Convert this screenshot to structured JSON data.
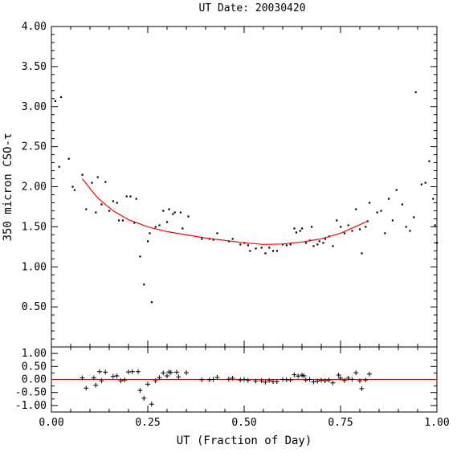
{
  "chart_data": [
    {
      "type": "scatter",
      "title": "UT Date: 20030420",
      "xlabel": "",
      "ylabel": "350 micron CSO-τ",
      "xlim": [
        0,
        1
      ],
      "ylim": [
        0,
        4
      ],
      "ytick_labels": [
        "0.50",
        "1.00",
        "1.50",
        "2.00",
        "2.50",
        "3.00",
        "3.50",
        "4.00"
      ],
      "series": [
        {
          "marker": "dot",
          "color": "#000000",
          "points": [
            [
              0.01,
              3.07
            ],
            [
              0.025,
              3.12
            ],
            [
              0.02,
              2.25
            ],
            [
              0.045,
              2.35
            ],
            [
              0.055,
              2.0
            ],
            [
              0.06,
              1.96
            ],
            [
              0.08,
              2.15
            ],
            [
              0.09,
              1.72
            ],
            [
              0.105,
              2.05
            ],
            [
              0.115,
              1.68
            ],
            [
              0.12,
              2.12
            ],
            [
              0.13,
              1.78
            ],
            [
              0.14,
              2.06
            ],
            [
              0.15,
              1.7
            ],
            [
              0.16,
              1.82
            ],
            [
              0.17,
              1.8
            ],
            [
              0.175,
              1.58
            ],
            [
              0.185,
              1.58
            ],
            [
              0.195,
              1.88
            ],
            [
              0.205,
              1.88
            ],
            [
              0.215,
              1.55
            ],
            [
              0.22,
              1.85
            ],
            [
              0.23,
              1.13
            ],
            [
              0.24,
              0.78
            ],
            [
              0.25,
              1.32
            ],
            [
              0.255,
              1.42
            ],
            [
              0.26,
              0.56
            ],
            [
              0.27,
              1.5
            ],
            [
              0.28,
              1.52
            ],
            [
              0.29,
              1.7
            ],
            [
              0.3,
              1.56
            ],
            [
              0.305,
              1.72
            ],
            [
              0.315,
              1.66
            ],
            [
              0.32,
              1.68
            ],
            [
              0.335,
              1.68
            ],
            [
              0.34,
              1.48
            ],
            [
              0.355,
              1.63
            ],
            [
              0.39,
              1.35
            ],
            [
              0.41,
              1.35
            ],
            [
              0.42,
              1.34
            ],
            [
              0.43,
              1.42
            ],
            [
              0.46,
              1.32
            ],
            [
              0.47,
              1.35
            ],
            [
              0.49,
              1.28
            ],
            [
              0.5,
              1.3
            ],
            [
              0.51,
              1.27
            ],
            [
              0.515,
              1.2
            ],
            [
              0.53,
              1.23
            ],
            [
              0.545,
              1.24
            ],
            [
              0.555,
              1.17
            ],
            [
              0.565,
              1.24
            ],
            [
              0.575,
              1.2
            ],
            [
              0.585,
              1.2
            ],
            [
              0.6,
              1.28
            ],
            [
              0.61,
              1.27
            ],
            [
              0.62,
              1.28
            ],
            [
              0.63,
              1.48
            ],
            [
              0.635,
              1.43
            ],
            [
              0.645,
              1.45
            ],
            [
              0.65,
              1.48
            ],
            [
              0.66,
              1.3
            ],
            [
              0.67,
              1.33
            ],
            [
              0.675,
              1.5
            ],
            [
              0.68,
              1.26
            ],
            [
              0.69,
              1.28
            ],
            [
              0.695,
              1.32
            ],
            [
              0.705,
              1.3
            ],
            [
              0.71,
              1.35
            ],
            [
              0.72,
              1.38
            ],
            [
              0.73,
              1.26
            ],
            [
              0.74,
              1.58
            ],
            [
              0.75,
              1.5
            ],
            [
              0.76,
              1.42
            ],
            [
              0.77,
              1.52
            ],
            [
              0.78,
              1.45
            ],
            [
              0.79,
              1.72
            ],
            [
              0.8,
              1.47
            ],
            [
              0.805,
              1.17
            ],
            [
              0.815,
              1.5
            ],
            [
              0.82,
              1.57
            ],
            [
              0.825,
              1.8
            ],
            [
              0.845,
              1.68
            ],
            [
              0.855,
              1.7
            ],
            [
              0.865,
              1.42
            ],
            [
              0.875,
              1.85
            ],
            [
              0.885,
              1.58
            ],
            [
              0.895,
              1.96
            ],
            [
              0.91,
              1.78
            ],
            [
              0.92,
              1.5
            ],
            [
              0.93,
              1.45
            ],
            [
              0.94,
              1.62
            ],
            [
              0.945,
              3.18
            ],
            [
              0.96,
              2.03
            ],
            [
              0.97,
              2.05
            ],
            [
              0.98,
              2.32
            ],
            [
              0.99,
              1.85
            ],
            [
              0.995,
              1.52
            ],
            [
              1.0,
              1.3
            ]
          ]
        },
        {
          "type": "line",
          "color": "#ff0000",
          "x": [
            0.08,
            0.12,
            0.16,
            0.2,
            0.25,
            0.3,
            0.35,
            0.4,
            0.45,
            0.5,
            0.55,
            0.6,
            0.65,
            0.7,
            0.75,
            0.82
          ],
          "y": [
            2.1,
            1.86,
            1.7,
            1.59,
            1.5,
            1.44,
            1.4,
            1.36,
            1.33,
            1.3,
            1.28,
            1.285,
            1.31,
            1.35,
            1.42,
            1.57
          ]
        }
      ]
    },
    {
      "type": "scatter",
      "xlabel": "UT (Fraction of Day)",
      "xlim": [
        0,
        1
      ],
      "ylim": [
        -1.25,
        1.25
      ],
      "xtick_labels": [
        "0.00",
        "0.25",
        "0.50",
        "0.75",
        "1.00"
      ],
      "ytick_labels": [
        "-1.00",
        "-0.50",
        "0.00",
        "0.50",
        "1.00"
      ],
      "zero_line": true,
      "series": [
        {
          "marker": "plus",
          "color": "#000000",
          "points": [
            [
              0.08,
              0.06
            ],
            [
              0.09,
              -0.33
            ],
            [
              0.11,
              0.06
            ],
            [
              0.115,
              -0.22
            ],
            [
              0.125,
              0.3
            ],
            [
              0.13,
              -0.05
            ],
            [
              0.14,
              0.28
            ],
            [
              0.16,
              0.12
            ],
            [
              0.17,
              0.14
            ],
            [
              0.18,
              -0.05
            ],
            [
              0.19,
              -0.02
            ],
            [
              0.2,
              0.29
            ],
            [
              0.21,
              0.3
            ],
            [
              0.225,
              0.3
            ],
            [
              0.23,
              -0.42
            ],
            [
              0.24,
              -0.72
            ],
            [
              0.25,
              -0.18
            ],
            [
              0.26,
              -0.95
            ],
            [
              0.27,
              -0.05
            ],
            [
              0.28,
              0.07
            ],
            [
              0.29,
              0.25
            ],
            [
              0.3,
              0.14
            ],
            [
              0.305,
              0.29
            ],
            [
              0.31,
              0.27
            ],
            [
              0.325,
              0.28
            ],
            [
              0.33,
              0.1
            ],
            [
              0.35,
              0.26
            ],
            [
              0.39,
              -0.01
            ],
            [
              0.41,
              -0.01
            ],
            [
              0.42,
              0.0
            ],
            [
              0.43,
              0.08
            ],
            [
              0.46,
              0.01
            ],
            [
              0.47,
              0.05
            ],
            [
              0.49,
              -0.02
            ],
            [
              0.5,
              0.0
            ],
            [
              0.51,
              -0.03
            ],
            [
              0.53,
              -0.06
            ],
            [
              0.545,
              -0.05
            ],
            [
              0.555,
              -0.1
            ],
            [
              0.565,
              -0.04
            ],
            [
              0.575,
              -0.08
            ],
            [
              0.585,
              -0.08
            ],
            [
              0.6,
              0.0
            ],
            [
              0.61,
              -0.01
            ],
            [
              0.62,
              -0.02
            ],
            [
              0.63,
              0.18
            ],
            [
              0.64,
              0.13
            ],
            [
              0.65,
              0.17
            ],
            [
              0.655,
              0.14
            ],
            [
              0.66,
              -0.02
            ],
            [
              0.67,
              0.0
            ],
            [
              0.68,
              -0.09
            ],
            [
              0.69,
              -0.06
            ],
            [
              0.7,
              -0.03
            ],
            [
              0.71,
              -0.05
            ],
            [
              0.72,
              -0.02
            ],
            [
              0.73,
              -0.13
            ],
            [
              0.745,
              0.17
            ],
            [
              0.75,
              0.05
            ],
            [
              0.76,
              -0.04
            ],
            [
              0.77,
              0.05
            ],
            [
              0.78,
              0.0
            ],
            [
              0.79,
              0.26
            ],
            [
              0.8,
              -0.05
            ],
            [
              0.805,
              -0.35
            ],
            [
              0.815,
              -0.02
            ],
            [
              0.825,
              0.21
            ]
          ]
        }
      ]
    }
  ]
}
